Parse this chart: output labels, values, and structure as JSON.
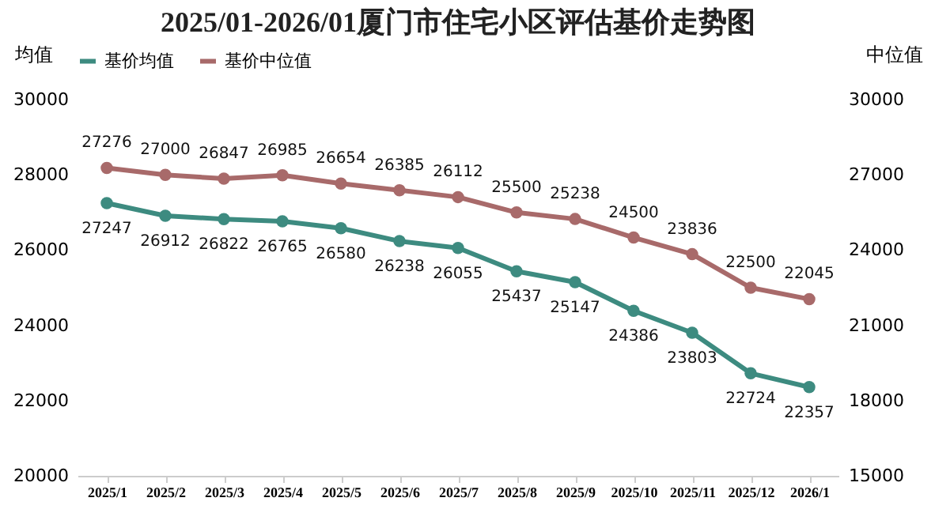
{
  "chart_data": {
    "type": "line",
    "title": "2025/01-2026/01厦门市住宅小区评估基价走势图",
    "ylabel": "均值",
    "y2label": "中位值",
    "categories": [
      "2025/1",
      "2025/2",
      "2025/3",
      "2025/4",
      "2025/5",
      "2025/6",
      "2025/7",
      "2025/8",
      "2025/9",
      "2025/10",
      "2025/11",
      "2025/12",
      "2026/1"
    ],
    "series": [
      {
        "name": "基价均值",
        "color": "#3d8b80",
        "values": [
          27247,
          26912,
          26822,
          26765,
          26580,
          26238,
          26055,
          25437,
          25147,
          24386,
          23803,
          22724,
          22357
        ]
      },
      {
        "name": "基价中位值",
        "color": "#a86a6a",
        "axis": "y2",
        "values": [
          27276,
          27000,
          26847,
          26985,
          26654,
          26385,
          26112,
          25500,
          25238,
          24500,
          23836,
          22500,
          22045
        ]
      }
    ],
    "ylim": [
      20000,
      30000
    ],
    "yticks": [
      20000,
      22000,
      24000,
      26000,
      28000,
      30000
    ],
    "y2lim": [
      15000,
      30000
    ],
    "y2ticks": [
      15000,
      18000,
      21000,
      24000,
      27000,
      30000
    ],
    "data_labels": true,
    "legend": "top",
    "grid": false,
    "marker": "circle",
    "line_style": "solid"
  }
}
